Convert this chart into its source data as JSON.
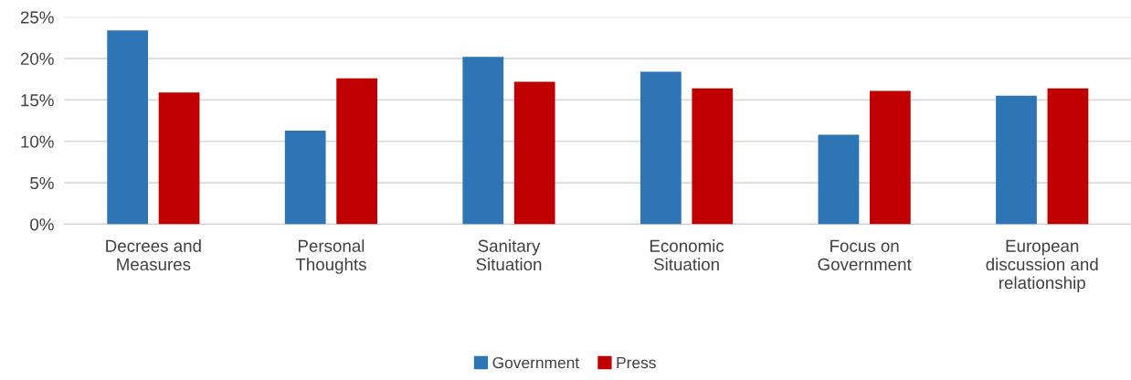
{
  "chart_data": {
    "type": "bar",
    "categories": [
      "Decrees and\nMeasures",
      "Personal\nThoughts",
      "Sanitary\nSituation",
      "Economic\nSituation",
      "Focus on\nGovernment",
      "European\ndiscussion and\nrelationship"
    ],
    "series": [
      {
        "name": "Government",
        "color": "#2e75b6",
        "values": [
          23.4,
          11.3,
          20.2,
          18.4,
          10.8,
          15.5
        ]
      },
      {
        "name": "Press",
        "color": "#c00000",
        "values": [
          15.9,
          17.6,
          17.2,
          16.4,
          16.1,
          16.4
        ]
      }
    ],
    "ylim": [
      0,
      25
    ],
    "yticks": [
      {
        "value": 0,
        "label": "0%"
      },
      {
        "value": 5,
        "label": "5%"
      },
      {
        "value": 10,
        "label": "10%"
      },
      {
        "value": 15,
        "label": "15%"
      },
      {
        "value": 20,
        "label": "20%"
      },
      {
        "value": 25,
        "label": "25%"
      }
    ],
    "grid": "y",
    "legend": "bottom"
  }
}
